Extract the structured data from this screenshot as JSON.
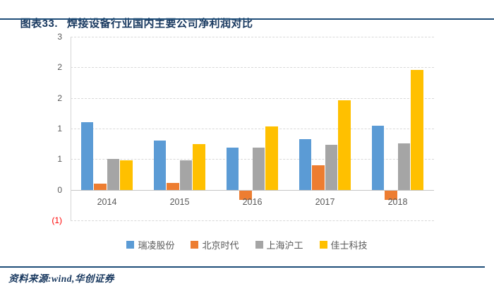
{
  "header": {
    "figure_label": "图表33.",
    "title": "焊接设备行业国内主要公司净利润对比"
  },
  "footer": {
    "source_label": "资料来源:wind,华创证券"
  },
  "chart_data": {
    "type": "bar",
    "title": "图表33. 焊接设备行业国内主要公司净利润对比",
    "xlabel": "",
    "ylabel": "",
    "categories": [
      "2014",
      "2015",
      "2016",
      "2017",
      "2018"
    ],
    "series": [
      {
        "name": "瑞凌股份",
        "color": "#5B9BD5",
        "values": [
          1.32,
          0.96,
          0.83,
          0.99,
          1.25
        ]
      },
      {
        "name": "北京时代",
        "color": "#ED7D31",
        "values": [
          0.12,
          0.13,
          -0.19,
          0.48,
          -0.19
        ]
      },
      {
        "name": "上海沪工",
        "color": "#A5A5A5",
        "values": [
          0.61,
          0.58,
          0.82,
          0.88,
          0.91
        ]
      },
      {
        "name": "佳士科技",
        "color": "#FFC000",
        "values": [
          0.58,
          0.9,
          1.24,
          1.76,
          2.35
        ]
      }
    ],
    "y_axis": {
      "min": -0.6,
      "max": 3.0,
      "step": 0.6,
      "ticks": [
        {
          "value": 3.0,
          "label": "3",
          "negative": false
        },
        {
          "value": 2.4,
          "label": "2",
          "negative": false
        },
        {
          "value": 1.8,
          "label": "2",
          "negative": false
        },
        {
          "value": 1.2,
          "label": "1",
          "negative": false
        },
        {
          "value": 0.6,
          "label": "1",
          "negative": false
        },
        {
          "value": 0.0,
          "label": "0",
          "negative": false
        },
        {
          "value": -0.6,
          "label": "(1)",
          "negative": true
        }
      ],
      "negative_label_color": "#FF0000"
    },
    "grid": "dashed-horizontal",
    "legend_position": "bottom"
  },
  "colors": {
    "accent_navy": "#1F4E79",
    "title_text": "#17375E",
    "axis_text": "#595959",
    "gridline": "#D9D9D9",
    "axis_line": "#C6C6C6"
  }
}
